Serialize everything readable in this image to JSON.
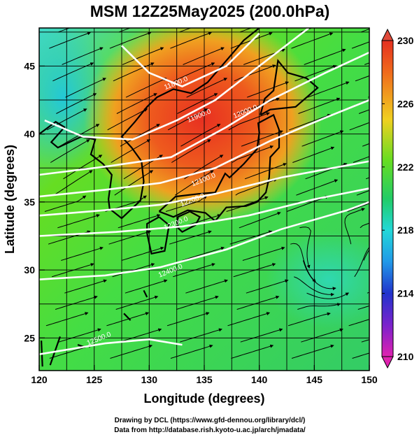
{
  "title": "MSM 12Z25May2025 (200.0hPa)",
  "xaxis": {
    "label": "Longitude (degrees)",
    "ticks": [
      "120",
      "125",
      "130",
      "135",
      "140",
      "145",
      "150"
    ]
  },
  "yaxis": {
    "label": "Latitude  (degrees)",
    "ticks": [
      "25",
      "30",
      "35",
      "40",
      "45"
    ]
  },
  "colorbar": {
    "ticks": [
      "230",
      "226",
      "222",
      "218",
      "214",
      "210"
    ]
  },
  "contours": [
    {
      "label": "11800.0",
      "lon": 132.5,
      "lat": 43.6
    },
    {
      "label": "11900.0",
      "lon": 134.6,
      "lat": 41.2
    },
    {
      "label": "12000.0",
      "lon": 138.8,
      "lat": 41.5
    },
    {
      "label": "12100.0",
      "lon": 135.0,
      "lat": 36.5
    },
    {
      "label": "12200.0",
      "lon": 134.0,
      "lat": 35.0
    },
    {
      "label": "12300.0",
      "lon": 132.5,
      "lat": 33.3
    },
    {
      "label": "12400.0",
      "lon": 132.0,
      "lat": 29.8
    },
    {
      "label": "12500.0",
      "lon": 125.5,
      "lat": 24.8
    }
  ],
  "credits": {
    "line1": "Drawing by DCL (https://www.gfd-dennou.org/library/dcl/)",
    "line2": "Data from http://database.rish.kyoto-u.ac.jp/arch/jmadata/"
  }
}
